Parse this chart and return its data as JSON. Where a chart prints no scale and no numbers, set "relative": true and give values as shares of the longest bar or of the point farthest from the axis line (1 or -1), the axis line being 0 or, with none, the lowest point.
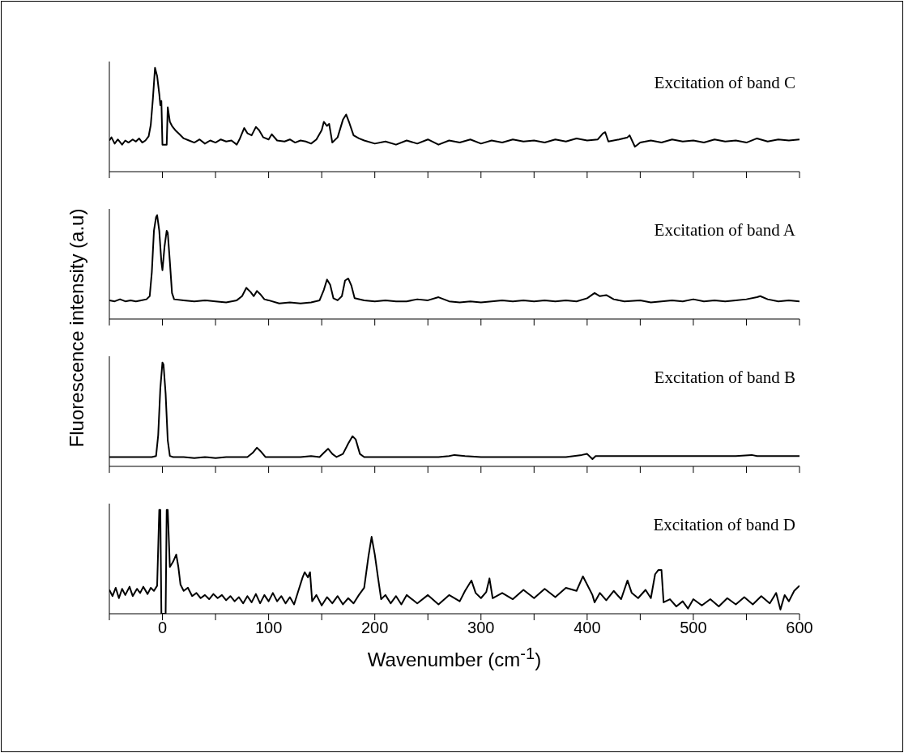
{
  "chart_data": [
    {
      "type": "line",
      "relative": true,
      "xlim": [
        -50,
        600
      ],
      "xticks": [
        -50,
        0,
        50,
        100,
        150,
        200,
        250,
        300,
        350,
        400,
        450,
        500,
        550,
        600
      ],
      "tick_labels": false,
      "annotations": [
        "Excitation of band C"
      ],
      "series": [
        {
          "color": "#000000",
          "x": [
            -50,
            -48,
            -45,
            -42,
            -38,
            -35,
            -32,
            -28,
            -25,
            -22,
            -19,
            -16,
            -13,
            -11,
            -9,
            -7,
            -5,
            -3,
            -2,
            -1,
            0,
            4,
            5,
            7,
            9,
            12,
            16,
            20,
            25,
            30,
            35,
            40,
            45,
            50,
            55,
            60,
            65,
            70,
            73,
            77,
            80,
            84,
            88,
            91,
            95,
            100,
            103,
            108,
            115,
            120,
            125,
            130,
            135,
            140,
            145,
            150,
            152,
            155,
            157,
            160,
            165,
            170,
            173,
            176,
            180,
            185,
            190,
            200,
            210,
            220,
            230,
            240,
            250,
            260,
            270,
            280,
            290,
            300,
            310,
            320,
            330,
            340,
            350,
            360,
            370,
            380,
            390,
            400,
            410,
            415,
            417,
            420,
            430,
            438,
            440,
            445,
            450,
            460,
            470,
            480,
            490,
            500,
            510,
            520,
            530,
            540,
            550,
            560,
            570,
            580,
            590,
            600
          ],
          "values": [
            0.3,
            0.33,
            0.27,
            0.31,
            0.26,
            0.3,
            0.28,
            0.31,
            0.29,
            0.32,
            0.28,
            0.3,
            0.34,
            0.45,
            0.7,
            1.0,
            0.92,
            0.75,
            0.64,
            0.68,
            0.26,
            0.26,
            0.62,
            0.48,
            0.44,
            0.4,
            0.36,
            0.32,
            0.3,
            0.28,
            0.31,
            0.27,
            0.3,
            0.28,
            0.31,
            0.29,
            0.3,
            0.26,
            0.32,
            0.42,
            0.37,
            0.35,
            0.43,
            0.4,
            0.33,
            0.31,
            0.36,
            0.3,
            0.29,
            0.31,
            0.28,
            0.3,
            0.29,
            0.27,
            0.31,
            0.4,
            0.48,
            0.44,
            0.46,
            0.28,
            0.33,
            0.5,
            0.55,
            0.47,
            0.35,
            0.32,
            0.3,
            0.27,
            0.29,
            0.26,
            0.3,
            0.27,
            0.31,
            0.26,
            0.3,
            0.28,
            0.31,
            0.27,
            0.3,
            0.28,
            0.31,
            0.29,
            0.3,
            0.28,
            0.31,
            0.29,
            0.32,
            0.3,
            0.31,
            0.37,
            0.38,
            0.29,
            0.31,
            0.33,
            0.35,
            0.24,
            0.28,
            0.3,
            0.28,
            0.31,
            0.29,
            0.3,
            0.28,
            0.31,
            0.29,
            0.3,
            0.28,
            0.32,
            0.29,
            0.31,
            0.3,
            0.31
          ]
        }
      ]
    },
    {
      "type": "line",
      "relative": true,
      "xlim": [
        -50,
        600
      ],
      "xticks": [
        -50,
        0,
        50,
        100,
        150,
        200,
        250,
        300,
        350,
        400,
        450,
        500,
        550,
        600
      ],
      "tick_labels": false,
      "ylabel": "Fluorescence intensity (a.u)",
      "annotations": [
        "Excitation of band A"
      ],
      "series": [
        {
          "color": "#000000",
          "x": [
            -50,
            -45,
            -40,
            -35,
            -30,
            -25,
            -20,
            -15,
            -12,
            -10,
            -8,
            -6,
            -5,
            -3,
            -1,
            0,
            2,
            4,
            5,
            7,
            9,
            11,
            20,
            30,
            40,
            50,
            60,
            70,
            75,
            79,
            83,
            86,
            89,
            92,
            96,
            100,
            110,
            120,
            130,
            140,
            148,
            152,
            155,
            158,
            161,
            165,
            169,
            172,
            175,
            178,
            181,
            190,
            200,
            210,
            220,
            230,
            240,
            250,
            260,
            265,
            270,
            280,
            290,
            300,
            310,
            320,
            330,
            340,
            350,
            360,
            370,
            380,
            390,
            400,
            407,
            412,
            418,
            425,
            435,
            450,
            460,
            470,
            480,
            490,
            500,
            510,
            520,
            530,
            540,
            550,
            560,
            563,
            570,
            580,
            590,
            600
          ],
          "values": [
            0.18,
            0.17,
            0.19,
            0.17,
            0.18,
            0.17,
            0.18,
            0.19,
            0.22,
            0.45,
            0.85,
            0.98,
            1.0,
            0.85,
            0.55,
            0.47,
            0.7,
            0.85,
            0.83,
            0.55,
            0.25,
            0.19,
            0.18,
            0.17,
            0.18,
            0.17,
            0.16,
            0.18,
            0.22,
            0.3,
            0.26,
            0.22,
            0.27,
            0.24,
            0.19,
            0.18,
            0.15,
            0.16,
            0.15,
            0.16,
            0.18,
            0.28,
            0.38,
            0.33,
            0.2,
            0.18,
            0.22,
            0.37,
            0.39,
            0.32,
            0.2,
            0.18,
            0.17,
            0.18,
            0.17,
            0.17,
            0.19,
            0.18,
            0.21,
            0.19,
            0.17,
            0.16,
            0.17,
            0.16,
            0.17,
            0.18,
            0.17,
            0.18,
            0.17,
            0.18,
            0.17,
            0.18,
            0.17,
            0.2,
            0.25,
            0.22,
            0.23,
            0.19,
            0.17,
            0.18,
            0.16,
            0.17,
            0.18,
            0.17,
            0.19,
            0.17,
            0.18,
            0.17,
            0.18,
            0.19,
            0.21,
            0.22,
            0.19,
            0.17,
            0.18,
            0.17
          ]
        }
      ]
    },
    {
      "type": "line",
      "relative": true,
      "xlim": [
        -50,
        600
      ],
      "xticks": [
        -50,
        0,
        50,
        100,
        150,
        200,
        250,
        300,
        350,
        400,
        450,
        500,
        550,
        600
      ],
      "tick_labels": false,
      "annotations": [
        "Excitation of band B"
      ],
      "series": [
        {
          "color": "#000000",
          "x": [
            -50,
            -40,
            -30,
            -20,
            -10,
            -6,
            -4,
            -2,
            0,
            1,
            3,
            5,
            7,
            10,
            20,
            30,
            40,
            50,
            60,
            70,
            80,
            85,
            89,
            93,
            97,
            110,
            120,
            130,
            140,
            148,
            152,
            156,
            160,
            164,
            170,
            175,
            179,
            182,
            186,
            190,
            200,
            220,
            240,
            260,
            270,
            275,
            285,
            300,
            320,
            340,
            360,
            380,
            395,
            400,
            405,
            408,
            420,
            440,
            460,
            480,
            500,
            520,
            540,
            555,
            560,
            580,
            600
          ],
          "values": [
            0.09,
            0.09,
            0.09,
            0.09,
            0.09,
            0.1,
            0.3,
            0.75,
            1.0,
            0.98,
            0.7,
            0.25,
            0.1,
            0.09,
            0.09,
            0.08,
            0.09,
            0.08,
            0.09,
            0.09,
            0.09,
            0.13,
            0.18,
            0.14,
            0.09,
            0.09,
            0.09,
            0.09,
            0.1,
            0.09,
            0.13,
            0.17,
            0.12,
            0.09,
            0.12,
            0.22,
            0.29,
            0.26,
            0.12,
            0.09,
            0.09,
            0.09,
            0.09,
            0.09,
            0.1,
            0.11,
            0.1,
            0.09,
            0.09,
            0.09,
            0.09,
            0.09,
            0.11,
            0.12,
            0.07,
            0.1,
            0.1,
            0.1,
            0.1,
            0.1,
            0.1,
            0.1,
            0.1,
            0.11,
            0.1,
            0.1,
            0.1
          ]
        }
      ]
    },
    {
      "type": "line",
      "relative": true,
      "xlim": [
        -50,
        600
      ],
      "xticks": [
        {
          "value": -50,
          "label": null
        },
        0,
        {
          "value": 50,
          "label": null
        },
        100,
        {
          "value": 150,
          "label": null
        },
        200,
        {
          "value": 250,
          "label": null
        },
        300,
        {
          "value": 350,
          "label": null
        },
        400,
        {
          "value": 450,
          "label": null
        },
        500,
        {
          "value": 550,
          "label": null
        },
        600
      ],
      "tick_labels": "x",
      "xlabel": "Wavenumber (cm$^{-1}$)",
      "annotations": [
        "Excitation of band D"
      ],
      "series": [
        {
          "color": "#000000",
          "x": [
            -50,
            -47,
            -44,
            -41,
            -38,
            -35,
            -31,
            -28,
            -24,
            -21,
            -18,
            -14,
            -11,
            -8,
            -5,
            -3,
            -2,
            -1,
            3,
            4,
            5,
            7,
            10,
            13,
            15,
            17,
            20,
            24,
            28,
            32,
            36,
            40,
            44,
            48,
            52,
            56,
            60,
            64,
            68,
            72,
            76,
            80,
            84,
            88,
            92,
            96,
            100,
            104,
            108,
            112,
            116,
            120,
            124,
            128,
            132,
            134,
            137,
            139,
            141,
            145,
            150,
            155,
            160,
            165,
            170,
            175,
            180,
            185,
            190,
            194,
            197,
            200,
            203,
            206,
            210,
            215,
            220,
            225,
            230,
            240,
            250,
            260,
            270,
            280,
            285,
            291,
            295,
            300,
            305,
            308,
            311,
            320,
            330,
            340,
            350,
            360,
            370,
            380,
            390,
            396,
            400,
            405,
            407,
            412,
            418,
            425,
            432,
            438,
            442,
            448,
            455,
            460,
            464,
            467,
            470,
            472,
            478,
            484,
            490,
            495,
            500,
            508,
            516,
            524,
            532,
            540,
            548,
            556,
            564,
            572,
            578,
            582,
            586,
            590,
            595,
            600
          ],
          "values": [
            0.23,
            0.17,
            0.25,
            0.15,
            0.24,
            0.18,
            0.26,
            0.17,
            0.24,
            0.2,
            0.26,
            0.19,
            0.25,
            0.22,
            0.27,
            1.0,
            1.0,
            0,
            0,
            1.0,
            1.0,
            0.45,
            0.5,
            0.57,
            0.45,
            0.28,
            0.22,
            0.25,
            0.17,
            0.2,
            0.15,
            0.18,
            0.14,
            0.19,
            0.15,
            0.18,
            0.13,
            0.17,
            0.12,
            0.16,
            0.1,
            0.17,
            0.11,
            0.19,
            0.1,
            0.18,
            0.12,
            0.2,
            0.12,
            0.17,
            0.1,
            0.16,
            0.09,
            0.22,
            0.35,
            0.4,
            0.35,
            0.4,
            0.12,
            0.18,
            0.08,
            0.16,
            0.1,
            0.17,
            0.09,
            0.15,
            0.1,
            0.18,
            0.25,
            0.55,
            0.74,
            0.57,
            0.35,
            0.14,
            0.18,
            0.1,
            0.17,
            0.09,
            0.18,
            0.1,
            0.18,
            0.09,
            0.18,
            0.12,
            0.22,
            0.32,
            0.2,
            0.15,
            0.21,
            0.34,
            0.15,
            0.2,
            0.14,
            0.23,
            0.15,
            0.24,
            0.16,
            0.25,
            0.22,
            0.36,
            0.28,
            0.18,
            0.11,
            0.2,
            0.13,
            0.22,
            0.14,
            0.32,
            0.2,
            0.15,
            0.23,
            0.15,
            0.38,
            0.42,
            0.42,
            0.11,
            0.14,
            0.07,
            0.12,
            0.05,
            0.14,
            0.08,
            0.14,
            0.07,
            0.15,
            0.09,
            0.16,
            0.09,
            0.17,
            0.1,
            0.2,
            0.04,
            0.18,
            0.12,
            0.22,
            0.27
          ]
        }
      ]
    }
  ]
}
